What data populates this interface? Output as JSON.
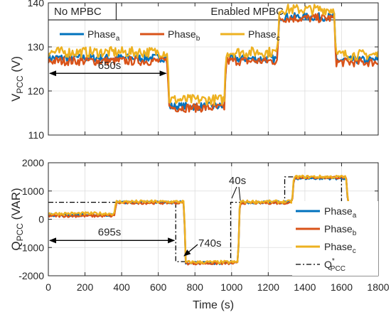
{
  "chart_data": [
    {
      "type": "line",
      "xlim": [
        0,
        1800
      ],
      "ylim": [
        110,
        140
      ],
      "xticks": [
        0,
        200,
        400,
        600,
        800,
        1000,
        1200,
        1400,
        1600,
        1800
      ],
      "yticks": [
        110,
        120,
        130,
        140
      ],
      "ylabel_main": "V",
      "ylabel_sub": "PCC",
      "ylabel_unit": "(V)",
      "grid": true,
      "legend_placement": "top-left",
      "regions": [
        {
          "label": "No MPBC",
          "x_start": 0,
          "x_end": 370
        },
        {
          "label": "Enabled MPBC",
          "x_start": 370,
          "x_end": 1800
        }
      ],
      "annotations": [
        {
          "label": "650s",
          "x_start": 0,
          "x_end": 650,
          "y": 124
        }
      ],
      "series": [
        {
          "name_main": "Phase",
          "name_sub": "a",
          "color": "#0072BD",
          "steps": [
            [
              0,
              127.5
            ],
            [
              650,
              116.5
            ],
            [
              960,
              127.3
            ],
            [
              1250,
              136.8
            ],
            [
              1560,
              127.0
            ],
            [
              1800,
              127.0
            ]
          ]
        },
        {
          "name_main": "Phase",
          "name_sub": "b",
          "color": "#D95319",
          "steps": [
            [
              0,
              126.8
            ],
            [
              650,
              116.2
            ],
            [
              960,
              126.8
            ],
            [
              1250,
              136.5
            ],
            [
              1560,
              126.5
            ],
            [
              1800,
              126.5
            ]
          ]
        },
        {
          "name_main": "Phase",
          "name_sub": "c",
          "color": "#EDB120",
          "steps": [
            [
              0,
              128.8
            ],
            [
              650,
              118.0
            ],
            [
              960,
              128.8
            ],
            [
              1250,
              138.5
            ],
            [
              1560,
              128.2
            ],
            [
              1800,
              128.2
            ]
          ]
        }
      ]
    },
    {
      "type": "line",
      "xlim": [
        0,
        1800
      ],
      "ylim": [
        -2000,
        2000
      ],
      "xticks": [
        0,
        200,
        400,
        600,
        800,
        1000,
        1200,
        1400,
        1600,
        1800
      ],
      "yticks": [
        -2000,
        -1000,
        0,
        1000,
        2000
      ],
      "xlabel": "Time (s)",
      "ylabel_main": "Q",
      "ylabel_sub": "PCC",
      "ylabel_unit": "(VAR)",
      "grid": true,
      "legend_placement": "bottom-right",
      "annotations": [
        {
          "label": "695s",
          "x_start": 0,
          "x_end": 695,
          "y": -750
        },
        {
          "label": "740s"
        },
        {
          "label": "40s"
        }
      ],
      "reference": {
        "name_main": "Q",
        "name_sub": "PCC",
        "name_sup": "*",
        "color": "#000000",
        "steps": [
          [
            0,
            600
          ],
          [
            695,
            -1500
          ],
          [
            995,
            600
          ],
          [
            1290,
            1500
          ],
          [
            1600,
            600
          ],
          [
            1800,
            600
          ]
        ]
      },
      "series": [
        {
          "name_main": "Phase",
          "name_sub": "a",
          "color": "#0072BD",
          "steps": [
            [
              0,
              150
            ],
            [
              360,
              600
            ],
            [
              740,
              -1550
            ],
            [
              1035,
              600
            ],
            [
              1330,
              1450
            ],
            [
              1625,
              550
            ],
            [
              1800,
              550
            ]
          ]
        },
        {
          "name_main": "Phase",
          "name_sub": "b",
          "color": "#D95319",
          "steps": [
            [
              0,
              120
            ],
            [
              360,
              580
            ],
            [
              740,
              -1560
            ],
            [
              1035,
              580
            ],
            [
              1330,
              1480
            ],
            [
              1625,
              520
            ],
            [
              1800,
              520
            ]
          ]
        },
        {
          "name_main": "Phase",
          "name_sub": "c",
          "color": "#EDB120",
          "steps": [
            [
              0,
              200
            ],
            [
              360,
              620
            ],
            [
              740,
              -1520
            ],
            [
              1035,
              620
            ],
            [
              1330,
              1500
            ],
            [
              1625,
              560
            ],
            [
              1800,
              560
            ]
          ]
        }
      ]
    }
  ]
}
